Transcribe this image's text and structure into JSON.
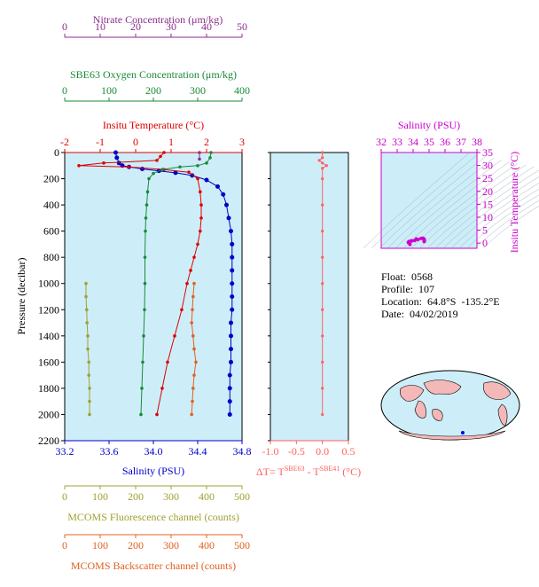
{
  "colors": {
    "nitrate": "#8b2e8b",
    "oxygen": "#1a8a3a",
    "temperature": "#e00000",
    "salinity": "#0000c8",
    "fluorescence": "#a0a030",
    "backscatter": "#e06020",
    "dt": "#ff6060",
    "ts": "#cc00cc",
    "plot_bg": "#cdeef8"
  },
  "float_info": {
    "float": "Float:  0568",
    "profile": "Profile:  107",
    "location": "Location:  64.8°S  -135.2°E",
    "date": "Date:  04/02/2019"
  },
  "chart_data": [
    {
      "type": "line",
      "title": "",
      "ylabel": "Pressure (decibar)",
      "ylim": [
        2200,
        0
      ],
      "yticks": [
        0,
        200,
        400,
        600,
        800,
        1000,
        1200,
        1400,
        1600,
        1800,
        2000,
        2200
      ],
      "yticklabels": [
        "0",
        "200",
        "400",
        "600",
        "800",
        "1000",
        "1200",
        "1400",
        "1600",
        "1800",
        "2000",
        "2200"
      ],
      "axes": [
        {
          "label": "Salinity (PSU)",
          "position": "bottom",
          "lim": [
            33.2,
            34.8
          ],
          "ticks": [
            33.2,
            33.6,
            34.0,
            34.4,
            34.8
          ],
          "ticklabels": [
            "33.2",
            "33.6",
            "34.0",
            "34.4",
            "34.8"
          ]
        },
        {
          "label": "Insitu Temperature (°C)",
          "position": "top",
          "lim": [
            -2,
            3
          ],
          "ticks": [
            -2,
            -1,
            0,
            1,
            2,
            3
          ],
          "ticklabels": [
            "-2",
            "-1",
            "0",
            "1",
            "2",
            "3"
          ]
        },
        {
          "label": "SBE63 Oxygen Concentration (μm/kg)",
          "position": "top",
          "lim": [
            0,
            400
          ],
          "ticks": [
            0,
            100,
            200,
            300,
            400
          ],
          "ticklabels": [
            "0",
            "100",
            "200",
            "300",
            "400"
          ]
        },
        {
          "label": "Nitrate Concentration (μm/kg)",
          "position": "top",
          "lim": [
            0,
            50
          ],
          "ticks": [
            0,
            10,
            20,
            30,
            40,
            50
          ],
          "ticklabels": [
            "0",
            "10",
            "20",
            "30",
            "40",
            "50"
          ]
        },
        {
          "label": "MCOMS Fluorescence channel (counts)",
          "position": "bottom",
          "lim": [
            0,
            500
          ],
          "ticks": [
            0,
            100,
            200,
            300,
            400,
            500
          ],
          "ticklabels": [
            "0",
            "100",
            "200",
            "300",
            "400",
            "500"
          ]
        },
        {
          "label": "MCOMS Backscatter channel (counts)",
          "position": "bottom",
          "lim": [
            0,
            500
          ],
          "ticks": [
            0,
            100,
            200,
            300,
            400,
            500
          ],
          "ticklabels": [
            "0",
            "100",
            "200",
            "300",
            "400",
            "500"
          ]
        }
      ],
      "series": [
        {
          "key": "salinity",
          "unit": "PSU",
          "points": [
            [
              33.66,
              0
            ],
            [
              33.67,
              40
            ],
            [
              33.69,
              80
            ],
            [
              33.72,
              100
            ],
            [
              33.78,
              110
            ],
            [
              33.9,
              125
            ],
            [
              34.05,
              140
            ],
            [
              34.2,
              155
            ],
            [
              34.35,
              175
            ],
            [
              34.48,
              210
            ],
            [
              34.58,
              260
            ],
            [
              34.63,
              320
            ],
            [
              34.66,
              400
            ],
            [
              34.68,
              500
            ],
            [
              34.7,
              600
            ],
            [
              34.71,
              700
            ],
            [
              34.71,
              800
            ],
            [
              34.71,
              900
            ],
            [
              34.71,
              1000
            ],
            [
              34.71,
              1100
            ],
            [
              34.71,
              1200
            ],
            [
              34.7,
              1300
            ],
            [
              34.7,
              1400
            ],
            [
              34.7,
              1500
            ],
            [
              34.7,
              1600
            ],
            [
              34.69,
              1700
            ],
            [
              34.69,
              1800
            ],
            [
              34.69,
              1900
            ],
            [
              34.69,
              2000
            ]
          ]
        },
        {
          "key": "temperature",
          "unit": "°C",
          "points": [
            [
              0.8,
              0
            ],
            [
              0.7,
              30
            ],
            [
              0.6,
              60
            ],
            [
              -0.9,
              80
            ],
            [
              -1.6,
              100
            ],
            [
              -0.2,
              110
            ],
            [
              0.8,
              130
            ],
            [
              1.5,
              150
            ],
            [
              1.75,
              200
            ],
            [
              1.82,
              300
            ],
            [
              1.85,
              400
            ],
            [
              1.85,
              500
            ],
            [
              1.82,
              600
            ],
            [
              1.75,
              700
            ],
            [
              1.65,
              800
            ],
            [
              1.55,
              900
            ],
            [
              1.45,
              1000
            ],
            [
              1.3,
              1200
            ],
            [
              1.1,
              1400
            ],
            [
              0.9,
              1600
            ],
            [
              0.75,
              1800
            ],
            [
              0.6,
              2000
            ]
          ]
        },
        {
          "key": "oxygen",
          "unit": "μm/kg",
          "points": [
            [
              330,
              0
            ],
            [
              328,
              40
            ],
            [
              320,
              80
            ],
            [
              300,
              100
            ],
            [
              260,
              110
            ],
            [
              220,
              130
            ],
            [
              200,
              160
            ],
            [
              190,
              200
            ],
            [
              187,
              300
            ],
            [
              185,
              400
            ],
            [
              183,
              500
            ],
            [
              182,
              600
            ],
            [
              181,
              800
            ],
            [
              181,
              1000
            ],
            [
              180,
              1200
            ],
            [
              178,
              1400
            ],
            [
              176,
              1600
            ],
            [
              174,
              1800
            ],
            [
              172,
              2000
            ]
          ]
        },
        {
          "key": "nitrate",
          "unit": "μm/kg",
          "points": [
            [
              38,
              0
            ],
            [
              38,
              50
            ]
          ]
        },
        {
          "key": "fluorescence",
          "unit": "counts",
          "points": [
            [
              60,
              1000
            ],
            [
              60,
              1100
            ],
            [
              62,
              1200
            ],
            [
              63,
              1300
            ],
            [
              65,
              1400
            ],
            [
              65,
              1500
            ],
            [
              68,
              1600
            ],
            [
              68,
              1700
            ],
            [
              70,
              1800
            ],
            [
              70,
              1900
            ],
            [
              70,
              2000
            ]
          ]
        },
        {
          "key": "backscatter",
          "unit": "counts",
          "points": [
            [
              365,
              1000
            ],
            [
              362,
              1100
            ],
            [
              360,
              1200
            ],
            [
              358,
              1300
            ],
            [
              362,
              1400
            ],
            [
              365,
              1500
            ],
            [
              370,
              1600
            ],
            [
              365,
              1700
            ],
            [
              362,
              1800
            ],
            [
              360,
              1900
            ],
            [
              358,
              2000
            ]
          ]
        }
      ]
    },
    {
      "type": "line",
      "xlabel": "ΔT= T",
      "xlabel_sub1": "SBE63",
      "xlabel_mid": " - T",
      "xlabel_sub2": "SBE41",
      "xlabel_unit": " (°C)",
      "xlim": [
        -1.0,
        0.5
      ],
      "xticks": [
        -1.0,
        -0.5,
        0.0,
        0.5
      ],
      "xticklabels": [
        "-1.0",
        "-0.5",
        "0.0",
        "0.5"
      ],
      "ylim": [
        2200,
        0
      ],
      "series": [
        {
          "key": "dt",
          "points": [
            [
              0.0,
              0
            ],
            [
              0.0,
              40
            ],
            [
              -0.06,
              60
            ],
            [
              0.0,
              80
            ],
            [
              0.08,
              100
            ],
            [
              0.0,
              120
            ],
            [
              0.0,
              200
            ],
            [
              0.0,
              400
            ],
            [
              0.0,
              600
            ],
            [
              0.0,
              800
            ],
            [
              0.0,
              1000
            ],
            [
              0.0,
              1200
            ],
            [
              0.0,
              1400
            ],
            [
              0.0,
              1600
            ],
            [
              0.0,
              1800
            ],
            [
              0.0,
              2000
            ]
          ]
        }
      ]
    },
    {
      "type": "scatter",
      "title": "Salinity (PSU)",
      "ylabel": "Insitu Temperature (°C)",
      "xlim": [
        32,
        38
      ],
      "xticks": [
        32,
        33,
        34,
        35,
        36,
        37,
        38
      ],
      "xticklabels": [
        "32",
        "33",
        "34",
        "35",
        "36",
        "37",
        "38"
      ],
      "ylim": [
        -2,
        35
      ],
      "yticks": [
        0,
        5,
        10,
        15,
        20,
        25,
        30,
        35
      ],
      "yticklabels": [
        "0",
        "5",
        "10",
        "15",
        "20",
        "25",
        "30",
        "35"
      ],
      "series": [
        {
          "key": "ts",
          "points": [
            [
              33.7,
              0.3
            ],
            [
              33.75,
              0.6
            ],
            [
              33.9,
              0.8
            ],
            [
              34.1,
              1.0
            ],
            [
              34.3,
              1.4
            ],
            [
              34.5,
              1.8
            ],
            [
              34.6,
              1.9
            ],
            [
              34.68,
              1.6
            ],
            [
              34.7,
              1.2
            ],
            [
              34.7,
              0.8
            ],
            [
              34.69,
              0.6
            ],
            [
              33.8,
              -0.5
            ],
            [
              33.9,
              0.9
            ],
            [
              34.2,
              1.6
            ]
          ]
        }
      ]
    }
  ]
}
